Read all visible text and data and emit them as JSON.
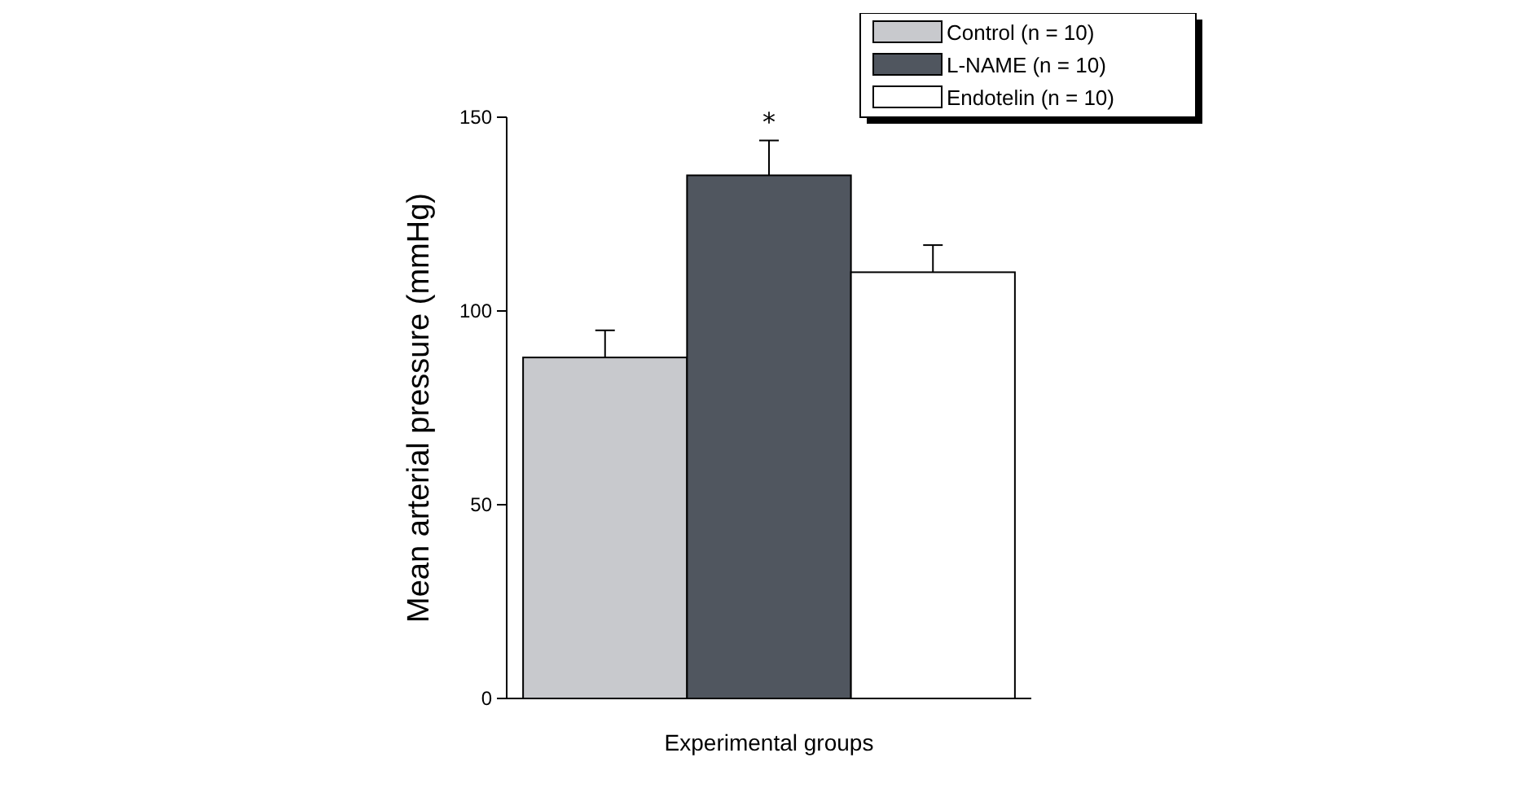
{
  "chart_data": {
    "type": "bar",
    "categories": [
      null,
      null,
      null
    ],
    "xlabel": "Experimental groups",
    "ylabel": "Mean arterial pressure (mmHg)",
    "series": [
      {
        "name": "Control (n = 10)",
        "color": "#c8c9cd",
        "values": [
          88,
          null,
          null
        ],
        "errors": [
          7,
          null,
          null
        ]
      },
      {
        "name": "L-NAME (n = 10)",
        "color": "#50565f",
        "values": [
          null,
          135,
          null
        ],
        "errors": [
          null,
          9,
          null
        ]
      },
      {
        "name": "Endotelin (n = 10)",
        "color": "#ffffff",
        "values": [
          null,
          null,
          110
        ],
        "errors": [
          null,
          null,
          7
        ]
      }
    ],
    "ylim": [
      0,
      150
    ],
    "yticks": [
      0,
      50,
      100,
      150
    ],
    "grid": false,
    "legend": "top right",
    "annotations": [
      "*"
    ]
  }
}
